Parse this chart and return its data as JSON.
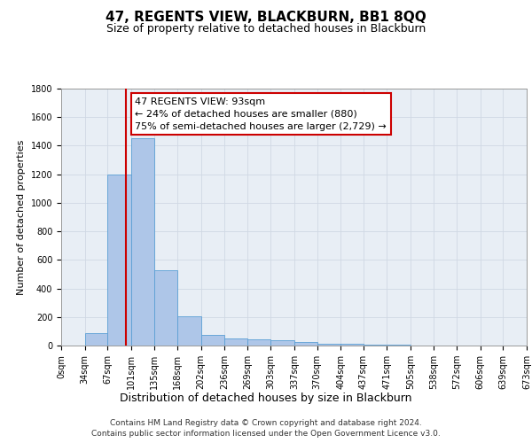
{
  "title": "47, REGENTS VIEW, BLACKBURN, BB1 8QQ",
  "subtitle": "Size of property relative to detached houses in Blackburn",
  "xlabel": "Distribution of detached houses by size in Blackburn",
  "ylabel": "Number of detached properties",
  "bin_edges": [
    0,
    34,
    67,
    101,
    135,
    168,
    202,
    236,
    269,
    303,
    337,
    370,
    404,
    437,
    471,
    505,
    538,
    572,
    606,
    639,
    673
  ],
  "bar_heights": [
    0,
    90,
    1200,
    1450,
    530,
    205,
    75,
    50,
    45,
    35,
    25,
    15,
    10,
    5,
    5,
    0,
    0,
    0,
    0,
    0
  ],
  "bar_color": "#aec6e8",
  "bar_edge_color": "#5a9fd4",
  "property_size": 93,
  "red_line_color": "#cc0000",
  "annotation_text": "47 REGENTS VIEW: 93sqm\n← 24% of detached houses are smaller (880)\n75% of semi-detached houses are larger (2,729) →",
  "annotation_box_color": "#ffffff",
  "annotation_box_edge": "#cc0000",
  "ylim": [
    0,
    1800
  ],
  "yticks": [
    0,
    200,
    400,
    600,
    800,
    1000,
    1200,
    1400,
    1600,
    1800
  ],
  "grid_color": "#d0d8e4",
  "background_color": "#e8eef5",
  "footer_line1": "Contains HM Land Registry data © Crown copyright and database right 2024.",
  "footer_line2": "Contains public sector information licensed under the Open Government Licence v3.0.",
  "title_fontsize": 11,
  "subtitle_fontsize": 9,
  "xlabel_fontsize": 9,
  "ylabel_fontsize": 8,
  "tick_fontsize": 7,
  "annotation_fontsize": 8,
  "footer_fontsize": 6.5
}
